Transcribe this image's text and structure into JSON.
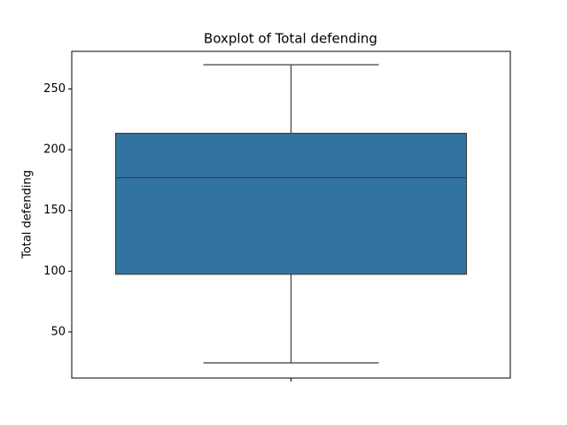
{
  "chart_data": {
    "type": "box",
    "title": "Boxplot of Total defending",
    "ylabel": "Total defending",
    "categories": [
      null
    ],
    "boxes": [
      {
        "whislo": 24.5,
        "q1": 97.5,
        "med": 177,
        "q3": 213.5,
        "whishi": 270
      }
    ],
    "color": "#3274a1",
    "edgecolor": "#3f3f3f",
    "ylim": [
      12,
      281
    ],
    "yticks": [
      50,
      100,
      150,
      200,
      250
    ],
    "grid": false
  }
}
